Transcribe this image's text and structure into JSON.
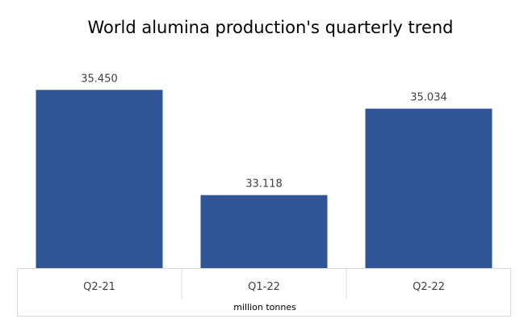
{
  "chart_data": {
    "type": "bar",
    "title": "World alumina production's quarterly trend",
    "xlabel": "million tonnes",
    "ylabel": "",
    "categories": [
      "Q2-21",
      "Q1-22",
      "Q2-22"
    ],
    "values": [
      35.45,
      33.118,
      35.034
    ],
    "value_labels": [
      "35.450",
      "33.118",
      "35.034"
    ],
    "ylim": [
      31.5,
      35.85
    ],
    "grid": false,
    "legend": "none",
    "bar_color": "#2F5597",
    "axis_line_color": "#D9D9D9"
  }
}
